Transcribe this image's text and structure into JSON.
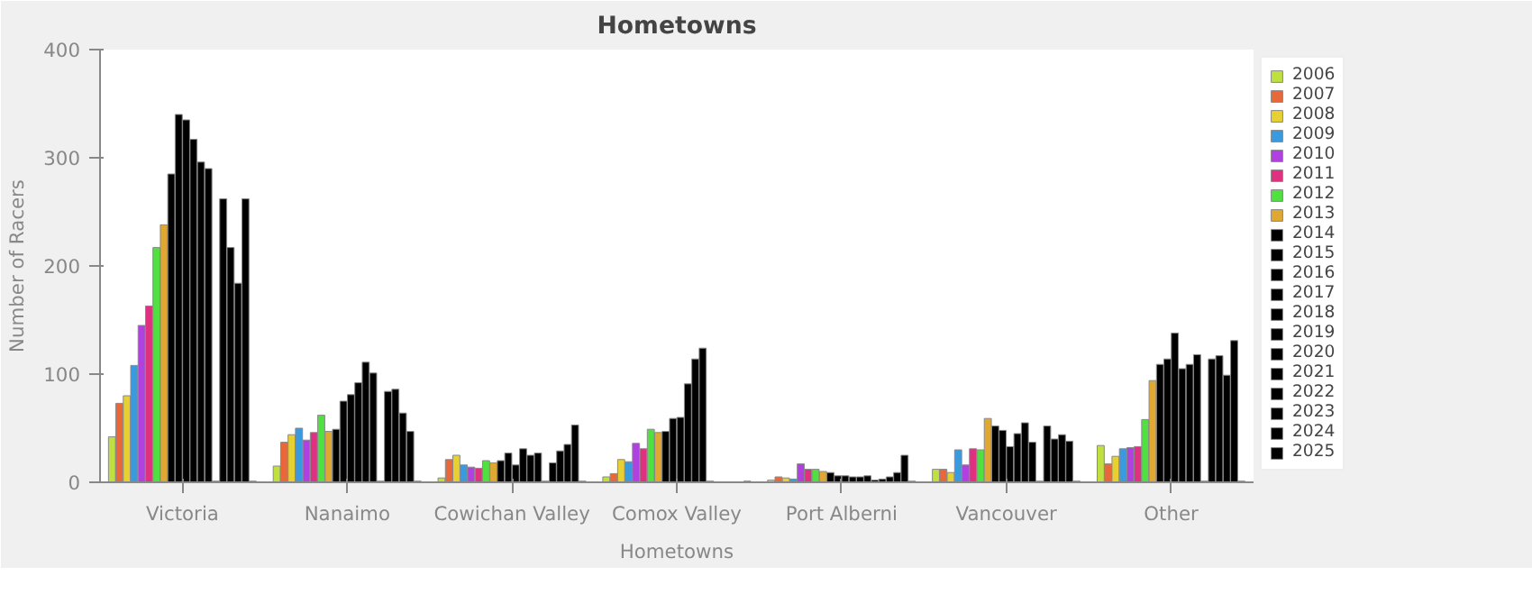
{
  "chart_data": {
    "type": "bar",
    "title": "Hometowns",
    "xlabel": "Hometowns",
    "ylabel": "Number of Racers",
    "categories": [
      "Victoria",
      "Nanaimo",
      "Cowichan Valley",
      "Comox Valley",
      "Port Alberni",
      "Vancouver",
      "Other"
    ],
    "ylim": [
      0,
      400
    ],
    "yticks": [
      0,
      100,
      200,
      300,
      400
    ],
    "grid": false,
    "legend": "right",
    "series": [
      {
        "name": "2006",
        "color": "#c0e040",
        "values": [
          42,
          15,
          4,
          5,
          2,
          12,
          34
        ]
      },
      {
        "name": "2007",
        "color": "#e8683a",
        "values": [
          73,
          37,
          21,
          8,
          5,
          12,
          17
        ]
      },
      {
        "name": "2008",
        "color": "#e8d030",
        "values": [
          80,
          44,
          25,
          21,
          4,
          9,
          24
        ]
      },
      {
        "name": "2009",
        "color": "#3a9ae0",
        "values": [
          108,
          50,
          16,
          19,
          3,
          30,
          31
        ]
      },
      {
        "name": "2010",
        "color": "#b040e0",
        "values": [
          145,
          39,
          14,
          36,
          17,
          16,
          32
        ]
      },
      {
        "name": "2011",
        "color": "#e03080",
        "values": [
          163,
          46,
          13,
          31,
          12,
          31,
          33
        ]
      },
      {
        "name": "2012",
        "color": "#50e040",
        "values": [
          217,
          62,
          20,
          49,
          12,
          30,
          58
        ]
      },
      {
        "name": "2013",
        "color": "#e0a830",
        "values": [
          238,
          47,
          18,
          46,
          10,
          59,
          94
        ]
      },
      {
        "name": "2014",
        "color": "#000000",
        "values": [
          285,
          49,
          20,
          47,
          9,
          52,
          109
        ]
      },
      {
        "name": "2015",
        "color": "#000000",
        "values": [
          340,
          75,
          27,
          59,
          6,
          48,
          114
        ]
      },
      {
        "name": "2016",
        "color": "#000000",
        "values": [
          335,
          81,
          16,
          60,
          6,
          33,
          138
        ]
      },
      {
        "name": "2017",
        "color": "#000000",
        "values": [
          317,
          92,
          31,
          91,
          5,
          45,
          105
        ]
      },
      {
        "name": "2018",
        "color": "#000000",
        "values": [
          296,
          111,
          25,
          114,
          5,
          55,
          109
        ]
      },
      {
        "name": "2019",
        "color": "#000000",
        "values": [
          290,
          101,
          27,
          124,
          6,
          37,
          118
        ]
      },
      {
        "name": "2020",
        "color": "#000000",
        "values": [
          1,
          1,
          1,
          1,
          2,
          1,
          1
        ]
      },
      {
        "name": "2021",
        "color": "#000000",
        "values": [
          262,
          84,
          18,
          null,
          3,
          52,
          114
        ]
      },
      {
        "name": "2022",
        "color": "#000000",
        "values": [
          217,
          86,
          29,
          null,
          5,
          40,
          117
        ]
      },
      {
        "name": "2023",
        "color": "#000000",
        "values": [
          184,
          64,
          35,
          null,
          9,
          44,
          99
        ]
      },
      {
        "name": "2024",
        "color": "#000000",
        "values": [
          262,
          47,
          53,
          null,
          25,
          38,
          131
        ]
      },
      {
        "name": "2025",
        "color": "#000000",
        "values": [
          1,
          1,
          1,
          1,
          1,
          1,
          1
        ]
      }
    ]
  }
}
